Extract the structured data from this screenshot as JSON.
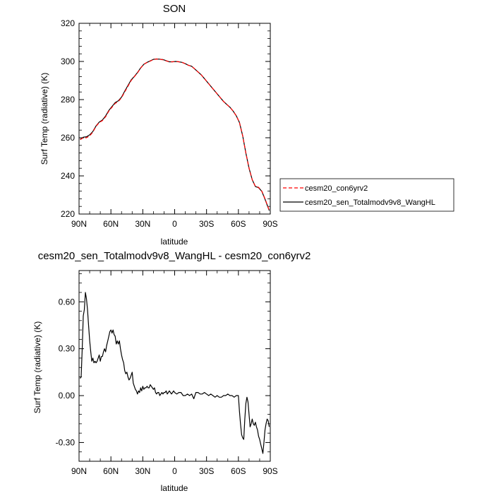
{
  "chart_data": [
    {
      "type": "line",
      "title": "SON",
      "xlabel": "latitude",
      "ylabel": "Surf Temp (radiative) (K)",
      "xlim": [
        90,
        -90
      ],
      "ylim": [
        220,
        320
      ],
      "x_ticks": [
        "90N",
        "60N",
        "30N",
        "0",
        "30S",
        "60S",
        "90S"
      ],
      "y_ticks": [
        "220",
        "240",
        "260",
        "280",
        "300",
        "320"
      ],
      "legend_position": "right-middle",
      "grid": false,
      "series": [
        {
          "name": "cesm20_con6yrv2",
          "color": "#ff0000",
          "style": "dashed",
          "x": [
            89,
            86,
            83,
            80,
            77,
            74,
            71,
            68,
            65,
            62,
            59,
            56,
            53,
            50,
            47,
            44,
            41,
            38,
            35,
            32,
            29,
            26,
            23,
            20,
            17,
            14,
            11,
            8,
            5,
            2,
            -1,
            -4,
            -7,
            -10,
            -13,
            -16,
            -19,
            -22,
            -25,
            -28,
            -31,
            -34,
            -37,
            -40,
            -43,
            -46,
            -49,
            -52,
            -55,
            -58,
            -61,
            -64,
            -67,
            -70,
            -73,
            -76,
            -79,
            -82,
            -85,
            -87,
            -89
          ],
          "values": [
            259,
            260,
            260,
            261,
            263,
            266,
            268,
            269,
            271,
            274,
            276,
            278,
            279,
            281,
            284,
            287,
            290,
            292,
            294,
            296.5,
            298.5,
            299.5,
            300.2,
            301,
            301.3,
            301.2,
            300.9,
            300.3,
            299.8,
            299.8,
            300,
            299.8,
            299.5,
            298.8,
            298,
            297.5,
            296,
            294.5,
            293,
            291,
            289,
            287,
            285,
            283,
            281,
            279,
            277.5,
            276,
            274,
            271.5,
            268,
            261,
            252,
            244,
            238,
            234.5,
            234,
            232,
            228,
            225,
            222
          ]
        },
        {
          "name": "cesm20_sen_Totalmodv9v8_WangHL",
          "color": "#000000",
          "style": "solid",
          "x": [
            89,
            86,
            83,
            80,
            77,
            74,
            71,
            68,
            65,
            62,
            59,
            56,
            53,
            50,
            47,
            44,
            41,
            38,
            35,
            32,
            29,
            26,
            23,
            20,
            17,
            14,
            11,
            8,
            5,
            2,
            -1,
            -4,
            -7,
            -10,
            -13,
            -16,
            -19,
            -22,
            -25,
            -28,
            -31,
            -34,
            -37,
            -40,
            -43,
            -46,
            -49,
            -52,
            -55,
            -58,
            -61,
            -64,
            -67,
            -70,
            -73,
            -76,
            -79,
            -82,
            -85,
            -87,
            -89
          ],
          "values": [
            259.1,
            260.3,
            260.5,
            261.5,
            263.3,
            266.2,
            268.2,
            269.3,
            271.4,
            274.3,
            276.4,
            278.4,
            279.4,
            281.3,
            284.4,
            287.4,
            290.3,
            292.1,
            294.2,
            296.6,
            298.5,
            299.5,
            300.3,
            301.1,
            301.3,
            301.2,
            301,
            300.4,
            299.8,
            299.8,
            300,
            299.8,
            299.5,
            298.8,
            298,
            297.5,
            296,
            294.5,
            293,
            291,
            289,
            287,
            285,
            283,
            281,
            279,
            277.5,
            276,
            274,
            271.5,
            268,
            261,
            252,
            244,
            238,
            234.4,
            233.8,
            231.9,
            227.8,
            224.8,
            221.8
          ]
        }
      ]
    },
    {
      "type": "line",
      "title": "cesm20_sen_Totalmodv9v8_WangHL - cesm20_con6yrv2",
      "xlabel": "latitude",
      "ylabel": "Surf Temp (radiative) (K)",
      "xlim": [
        90,
        -90
      ],
      "ylim": [
        -0.42,
        0.8
      ],
      "x_ticks": [
        "90N",
        "60N",
        "30N",
        "0",
        "30S",
        "60S",
        "90S"
      ],
      "y_ticks": [
        "0.60",
        "0.30",
        "0.00",
        "-0.30"
      ],
      "y_tick_values": [
        0.6,
        0.3,
        0,
        -0.3
      ],
      "grid": false,
      "series": [
        {
          "color": "#000000",
          "style": "solid",
          "x": [
            89,
            88,
            87,
            86,
            85,
            84,
            83,
            82,
            81,
            80,
            79,
            78,
            77,
            76,
            75,
            74,
            73,
            72,
            71,
            70,
            69,
            68,
            67,
            66,
            65,
            64,
            63,
            62,
            61,
            60,
            59,
            58,
            57,
            56,
            55,
            54,
            53,
            52,
            51,
            50,
            49,
            48,
            47,
            46,
            45,
            44,
            43,
            42,
            41,
            40,
            39,
            38,
            37,
            36,
            35,
            34,
            33,
            32,
            31,
            30,
            29,
            28,
            27,
            26,
            25,
            24,
            23,
            22,
            21,
            20,
            19,
            18,
            17,
            16,
            15,
            14,
            13,
            12,
            11,
            10,
            9,
            8,
            7,
            6,
            5,
            4,
            3,
            2,
            1,
            0,
            -2,
            -4,
            -6,
            -8,
            -10,
            -12,
            -14,
            -16,
            -18,
            -20,
            -22,
            -24,
            -26,
            -28,
            -30,
            -32,
            -34,
            -36,
            -38,
            -40,
            -42,
            -44,
            -46,
            -48,
            -50,
            -52,
            -54,
            -56,
            -58,
            -60,
            -61,
            -62,
            -63,
            -64,
            -65,
            -66,
            -67,
            -68,
            -69,
            -70,
            -71,
            -72,
            -73,
            -74,
            -75,
            -76,
            -77,
            -78,
            -79,
            -80,
            -81,
            -82,
            -83,
            -84,
            -85,
            -86,
            -87,
            -88,
            -89
          ],
          "values": [
            0.11,
            0.12,
            0.3,
            0.51,
            0.55,
            0.66,
            0.62,
            0.55,
            0.45,
            0.35,
            0.28,
            0.22,
            0.24,
            0.21,
            0.22,
            0.21,
            0.22,
            0.24,
            0.26,
            0.22,
            0.25,
            0.25,
            0.28,
            0.3,
            0.28,
            0.32,
            0.35,
            0.38,
            0.41,
            0.42,
            0.4,
            0.42,
            0.39,
            0.38,
            0.33,
            0.35,
            0.33,
            0.35,
            0.3,
            0.26,
            0.23,
            0.21,
            0.16,
            0.14,
            0.15,
            0.12,
            0.1,
            0.11,
            0.13,
            0.15,
            0.08,
            0.06,
            0.04,
            0.03,
            0.01,
            0.03,
            0.02,
            0.05,
            0.03,
            0.06,
            0.04,
            0.05,
            0.05,
            0.06,
            0.05,
            0.05,
            0.07,
            0.06,
            0.05,
            0.04,
            0.05,
            0.02,
            0.01,
            0.02,
            0.02,
            0.0,
            0.01,
            0.02,
            0.01,
            0.02,
            0.02,
            0.03,
            0.01,
            0.02,
            0.03,
            0.02,
            0.01,
            0.02,
            0.03,
            0.02,
            0.01,
            0.02,
            0.02,
            0.0,
            0.0,
            0.01,
            0.0,
            0.01,
            -0.02,
            0.02,
            0.02,
            0.01,
            0.01,
            0.02,
            0.01,
            0.0,
            0.01,
            0.0,
            -0.01,
            0.0,
            -0.01,
            -0.01,
            0.0,
            0.0,
            0.01,
            0.0,
            0.0,
            -0.01,
            0.0,
            0.0,
            -0.1,
            -0.18,
            -0.25,
            -0.27,
            -0.28,
            -0.15,
            -0.05,
            -0.01,
            -0.04,
            -0.12,
            -0.2,
            -0.18,
            -0.15,
            -0.18,
            -0.19,
            -0.17,
            -0.2,
            -0.22,
            -0.26,
            -0.28,
            -0.31,
            -0.34,
            -0.37,
            -0.3,
            -0.22,
            -0.18,
            -0.15,
            -0.16,
            -0.2
          ]
        }
      ]
    }
  ]
}
